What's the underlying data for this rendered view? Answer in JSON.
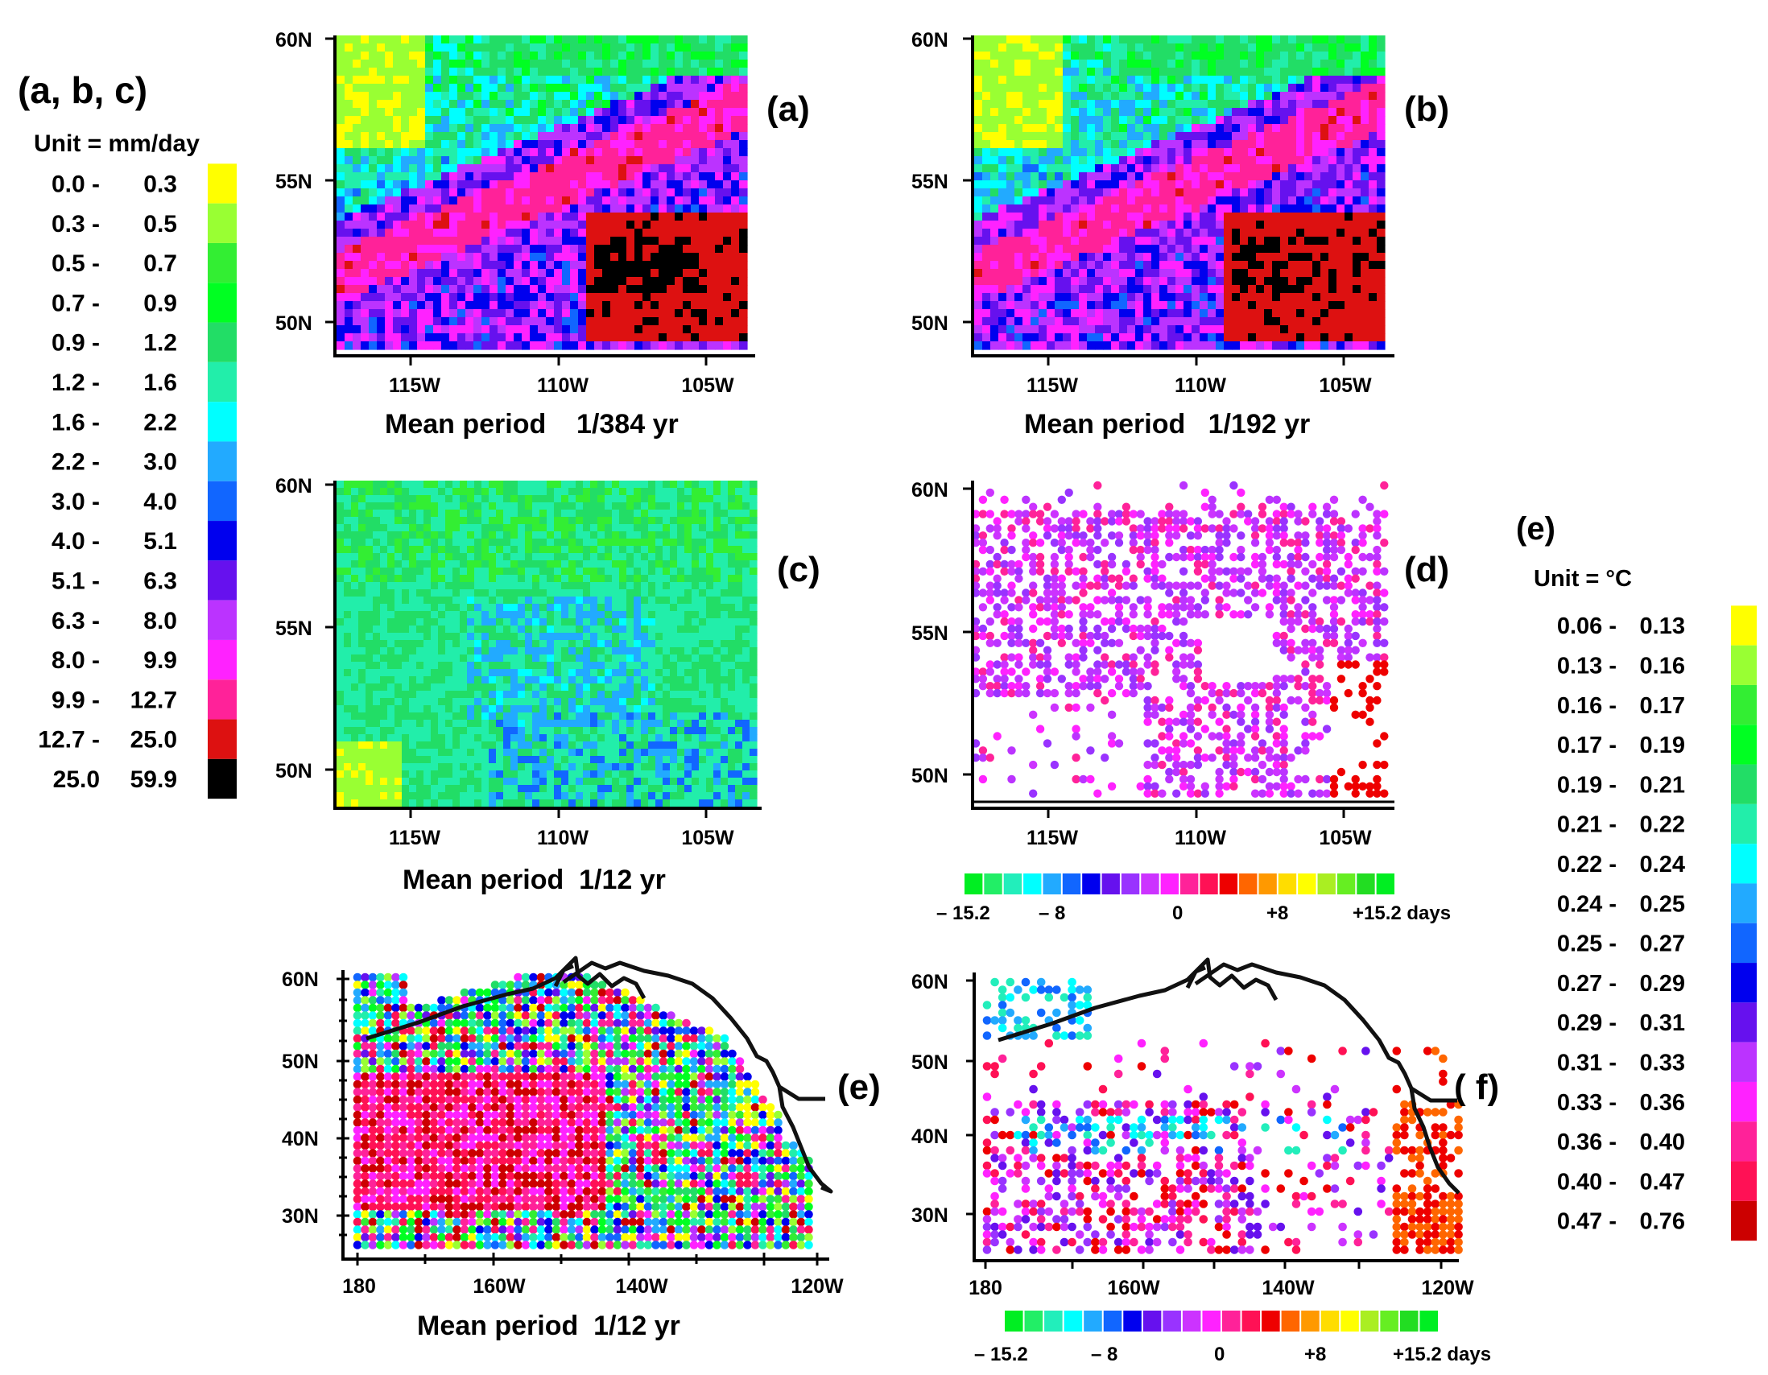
{
  "legend_abc": {
    "title": "(a, b, c)",
    "unit": "Unit = mm/day",
    "rows": [
      {
        "lo": "0.0 -",
        "hi": "0.3",
        "color": "#ffff00"
      },
      {
        "lo": "0.3 -",
        "hi": "0.5",
        "color": "#99ff33"
      },
      {
        "lo": "0.5 -",
        "hi": "0.7",
        "color": "#33ee33"
      },
      {
        "lo": "0.7 -",
        "hi": "0.9",
        "color": "#00ff22"
      },
      {
        "lo": "0.9 -",
        "hi": "1.2",
        "color": "#22dd66"
      },
      {
        "lo": "1.2 -",
        "hi": "1.6",
        "color": "#22eeaa"
      },
      {
        "lo": "1.6 -",
        "hi": "2.2",
        "color": "#00ffff"
      },
      {
        "lo": "2.2 -",
        "hi": "3.0",
        "color": "#22aaff"
      },
      {
        "lo": "3.0 -",
        "hi": "4.0",
        "color": "#1166ff"
      },
      {
        "lo": "4.0 -",
        "hi": "5.1",
        "color": "#0000ee"
      },
      {
        "lo": "5.1 -",
        "hi": "6.3",
        "color": "#6611ee"
      },
      {
        "lo": "6.3 -",
        "hi": "8.0",
        "color": "#bb33ff"
      },
      {
        "lo": "8.0 -",
        "hi": "9.9",
        "color": "#ff22ff"
      },
      {
        "lo": "9.9 -",
        "hi": "12.7",
        "color": "#ff2299"
      },
      {
        "lo": "12.7 -",
        "hi": "25.0",
        "color": "#dd1111"
      },
      {
        "lo": "25.0",
        "hi": "59.9",
        "color": "#000000"
      }
    ]
  },
  "legend_e": {
    "title": "(e)",
    "unit": "Unit = °C",
    "rows": [
      {
        "lo": "0.06 -",
        "hi": "0.13",
        "color": "#ffff00"
      },
      {
        "lo": "0.13 -",
        "hi": "0.16",
        "color": "#99ff33"
      },
      {
        "lo": "0.16 -",
        "hi": "0.17",
        "color": "#33ee33"
      },
      {
        "lo": "0.17 -",
        "hi": "0.19",
        "color": "#00ff22"
      },
      {
        "lo": "0.19 -",
        "hi": "0.21",
        "color": "#22dd66"
      },
      {
        "lo": "0.21 -",
        "hi": "0.22",
        "color": "#22eeaa"
      },
      {
        "lo": "0.22 -",
        "hi": "0.24",
        "color": "#00ffff"
      },
      {
        "lo": "0.24 -",
        "hi": "0.25",
        "color": "#22aaff"
      },
      {
        "lo": "0.25 -",
        "hi": "0.27",
        "color": "#1166ff"
      },
      {
        "lo": "0.27 -",
        "hi": "0.29",
        "color": "#0000ee"
      },
      {
        "lo": "0.29 -",
        "hi": "0.31",
        "color": "#6611ee"
      },
      {
        "lo": "0.31 -",
        "hi": "0.33",
        "color": "#bb33ff"
      },
      {
        "lo": "0.33 -",
        "hi": "0.36",
        "color": "#ff22ff"
      },
      {
        "lo": "0.36 -",
        "hi": "0.40",
        "color": "#ff2299"
      },
      {
        "lo": "0.40 -",
        "hi": "0.47",
        "color": "#ff1155"
      },
      {
        "lo": "0.47 -",
        "hi": "0.76",
        "color": "#cc0000"
      }
    ]
  },
  "days_bar": {
    "labels": [
      "– 15.2",
      "– 8",
      "0",
      "+8",
      "+15.2 days"
    ],
    "colors": [
      "#00ee22",
      "#22ee66",
      "#22eebb",
      "#00ffff",
      "#22aaff",
      "#1166ff",
      "#0000ee",
      "#6611ee",
      "#9933ff",
      "#cc33ff",
      "#ff22ff",
      "#ff2299",
      "#ff1155",
      "#ee0000",
      "#ff6600",
      "#ff9900",
      "#ffdd00",
      "#ffff00",
      "#aaee22",
      "#66ee22",
      "#22dd22",
      "#00ee22"
    ]
  },
  "panels": {
    "a": {
      "tag": "(a)",
      "caption": "Mean period    1/384 yr",
      "yticks": [
        "60N",
        "55N",
        "50N"
      ],
      "xticks": [
        "115W",
        "110W",
        "105W"
      ]
    },
    "b": {
      "tag": "(b)",
      "caption": "Mean period   1/192 yr",
      "yticks": [
        "60N",
        "55N",
        "50N"
      ],
      "xticks": [
        "115W",
        "110W",
        "105W"
      ]
    },
    "c": {
      "tag": "(c)",
      "caption": "Mean period  1/12 yr",
      "yticks": [
        "60N",
        "55N",
        "50N"
      ],
      "xticks": [
        "115W",
        "110W",
        "105W"
      ]
    },
    "d": {
      "tag": "(d)",
      "yticks": [
        "60N",
        "55N",
        "50N"
      ],
      "xticks": [
        "115W",
        "110W",
        "105W"
      ]
    },
    "e": {
      "tag": "(e)",
      "caption": "Mean period  1/12 yr",
      "yticks": [
        "60N",
        "50N",
        "40N",
        "30N"
      ],
      "xticks": [
        "180",
        "160W",
        "140W",
        "120W"
      ]
    },
    "f": {
      "tag": "( f)",
      "yticks": [
        "60N",
        "50N",
        "40N",
        "30N"
      ],
      "xticks": [
        "180",
        "160W",
        "140W",
        "120W"
      ]
    }
  }
}
